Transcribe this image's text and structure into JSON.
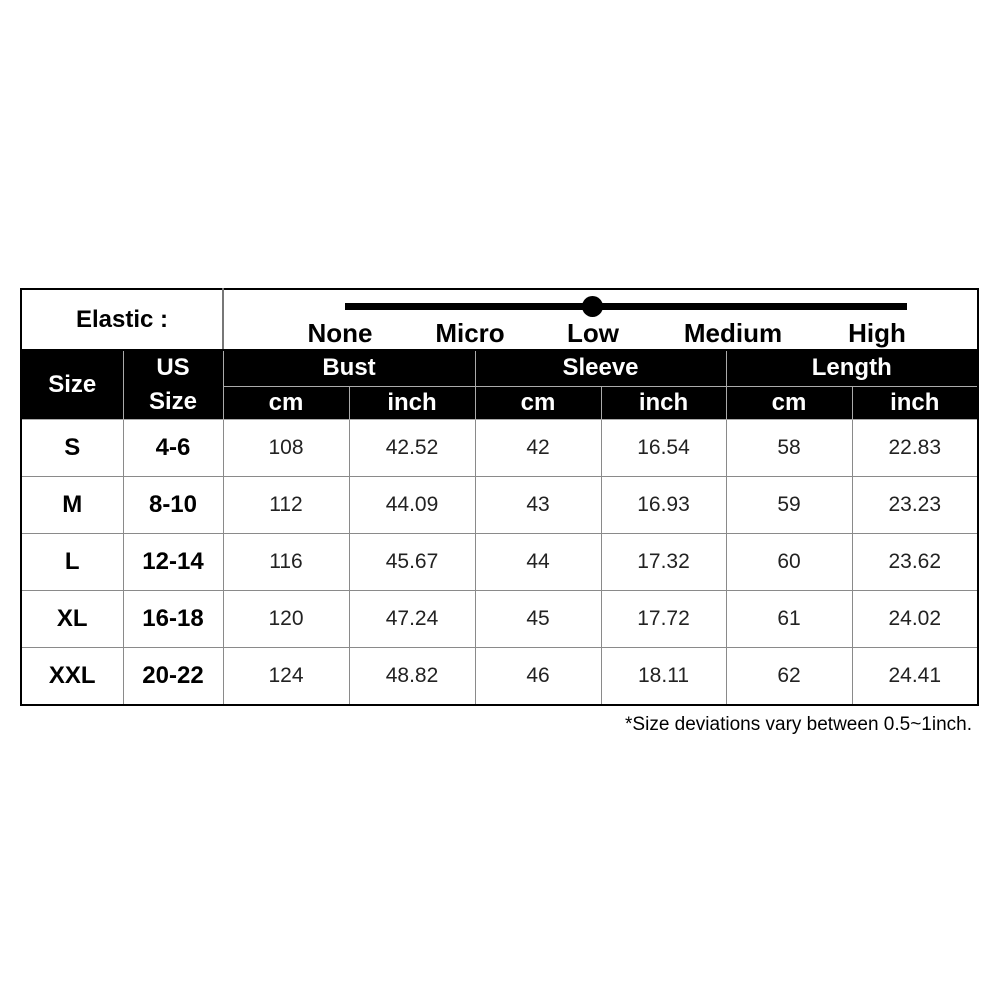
{
  "elastic": {
    "label": "Elastic :",
    "levels": [
      "None",
      "Micro",
      "Low",
      "Medium",
      "High"
    ],
    "selected": "Low"
  },
  "headers": {
    "size": "Size",
    "us_size_line1": "US",
    "us_size_line2": "Size",
    "groups": [
      "Bust",
      "Sleeve",
      "Length"
    ],
    "units": [
      "cm",
      "inch",
      "cm",
      "inch",
      "cm",
      "inch"
    ]
  },
  "rows": [
    [
      "S",
      "4-6",
      "108",
      "42.52",
      "42",
      "16.54",
      "58",
      "22.83"
    ],
    [
      "M",
      "8-10",
      "112",
      "44.09",
      "43",
      "16.93",
      "59",
      "23.23"
    ],
    [
      "L",
      "12-14",
      "116",
      "45.67",
      "44",
      "17.32",
      "60",
      "23.62"
    ],
    [
      "XL",
      "16-18",
      "120",
      "47.24",
      "45",
      "17.72",
      "61",
      "24.02"
    ],
    [
      "XXL",
      "20-22",
      "124",
      "48.82",
      "46",
      "18.11",
      "62",
      "24.41"
    ]
  ],
  "footnote": "*Size deviations vary between 0.5~1inch."
}
